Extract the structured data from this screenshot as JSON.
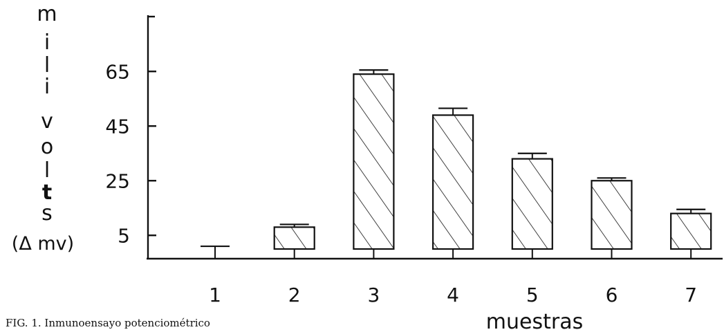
{
  "caption": "FIG. 1.  Inmunoensayo potenciométrico",
  "chart_data": {
    "type": "bar",
    "categories": [
      "1",
      "2",
      "3",
      "4",
      "5",
      "6",
      "7"
    ],
    "values": [
      0,
      8,
      64,
      49,
      33,
      25,
      13
    ],
    "errors": [
      1,
      1,
      1.5,
      2.5,
      2,
      1,
      1.5
    ],
    "title": "",
    "ylabel_chars": [
      "m",
      "i",
      "l",
      "i",
      "v",
      "o",
      "l",
      "t",
      "s"
    ],
    "ylabel_unit": "(Δ mv)",
    "xlabel": "muestras",
    "yticks": [
      5,
      25,
      45,
      65
    ],
    "ylim": [
      0,
      72
    ],
    "grid": false,
    "bar_fill": "diagonal-hatch",
    "colors": {
      "ink": "#111111",
      "background": "#ffffff"
    }
  }
}
